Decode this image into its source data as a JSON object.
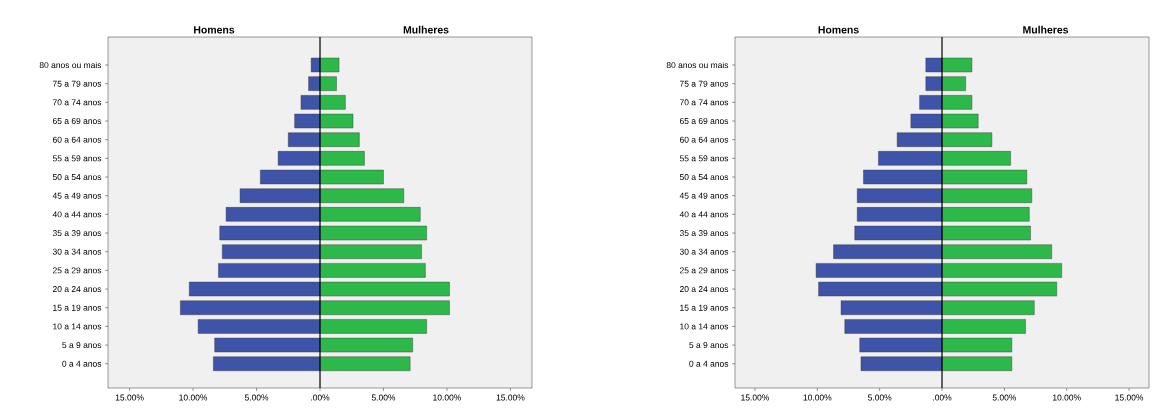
{
  "chart_data": [
    {
      "type": "bar",
      "orientation": "horizontal",
      "stacked": true,
      "categories": [
        "80 anos ou mais",
        "75 a 79 anos",
        "70 a 74 anos",
        "65 a 69 anos",
        "60 a 64 anos",
        "55 a 59 anos",
        "50 a 54 anos",
        "45 a 49 anos",
        "40 a 44 anos",
        "35 a 39 anos",
        "30 a 34 anos",
        "25 a 29 anos",
        "20 a 24 anos",
        "15 a 19 anos",
        "10 a 14 anos",
        "5 a 9 anos",
        "0 a 4 anos"
      ],
      "series": [
        {
          "color": "#3f54a8",
          "values": [
            -0.7,
            -0.9,
            -1.5,
            -2.0,
            -2.5,
            -3.3,
            -4.7,
            -6.3,
            -7.4,
            -7.9,
            -7.7,
            -8.0,
            -10.3,
            -11.0,
            -9.6,
            -8.3,
            -8.4
          ]
        },
        {
          "color": "#2db84a",
          "values": [
            1.5,
            1.3,
            2.0,
            2.6,
            3.1,
            3.5,
            5.0,
            6.6,
            7.9,
            8.4,
            8.0,
            8.3,
            10.2,
            10.2,
            8.4,
            7.3,
            7.1
          ]
        }
      ],
      "annotations": [
        "Homens",
        "Mulheres"
      ],
      "xlim": [
        -16.7,
        16.7
      ],
      "xticks": [
        {
          "value": -15,
          "label": "15.00%"
        },
        {
          "value": -10,
          "label": "10.00%"
        },
        {
          "value": -5,
          "label": "5.00%"
        },
        {
          "value": 0,
          "label": ".00%"
        },
        {
          "value": 5,
          "label": "5.00%"
        },
        {
          "value": 10,
          "label": "10.00%"
        },
        {
          "value": 15,
          "label": "15.00%"
        }
      ],
      "ref_lines": [
        {
          "axis": "x",
          "value": 0
        }
      ]
    },
    {
      "type": "bar",
      "orientation": "horizontal",
      "stacked": true,
      "categories": [
        "80 anos ou mais",
        "75 a 79 anos",
        "70 a 74 anos",
        "65 a 69 anos",
        "60 a 64 anos",
        "55 a 59 anos",
        "50 a 54 anos",
        "45 a 49 anos",
        "40 a 44 anos",
        "35 a 39 anos",
        "30 a 34 anos",
        "25 a 29 anos",
        "20 a 24 anos",
        "15 a 19 anos",
        "10 a 14 anos",
        "5 a 9 anos",
        "0 a 4 anos"
      ],
      "series": [
        {
          "color": "#3f54a8",
          "values": [
            -1.3,
            -1.3,
            -1.8,
            -2.5,
            -3.6,
            -5.1,
            -6.3,
            -6.8,
            -6.8,
            -7.0,
            -8.7,
            -10.1,
            -9.9,
            -8.1,
            -7.8,
            -6.6,
            -6.5
          ]
        },
        {
          "color": "#2db84a",
          "values": [
            2.4,
            1.9,
            2.4,
            2.9,
            4.0,
            5.5,
            6.8,
            7.2,
            7.0,
            7.1,
            8.8,
            9.6,
            9.2,
            7.4,
            6.7,
            5.6,
            5.6
          ]
        }
      ],
      "annotations": [
        "Homens",
        "Mulheres"
      ],
      "xlim": [
        -16.6,
        16.6
      ],
      "xticks": [
        {
          "value": -15,
          "label": "15.00%"
        },
        {
          "value": -10,
          "label": "10.00%"
        },
        {
          "value": -5,
          "label": "5.00%"
        },
        {
          "value": 0,
          "label": ".00%"
        },
        {
          "value": 5,
          "label": "5.00%"
        },
        {
          "value": 10,
          "label": "10.00%"
        },
        {
          "value": 15,
          "label": "15.00%"
        }
      ],
      "ref_lines": [
        {
          "axis": "x",
          "value": 0
        }
      ]
    }
  ]
}
